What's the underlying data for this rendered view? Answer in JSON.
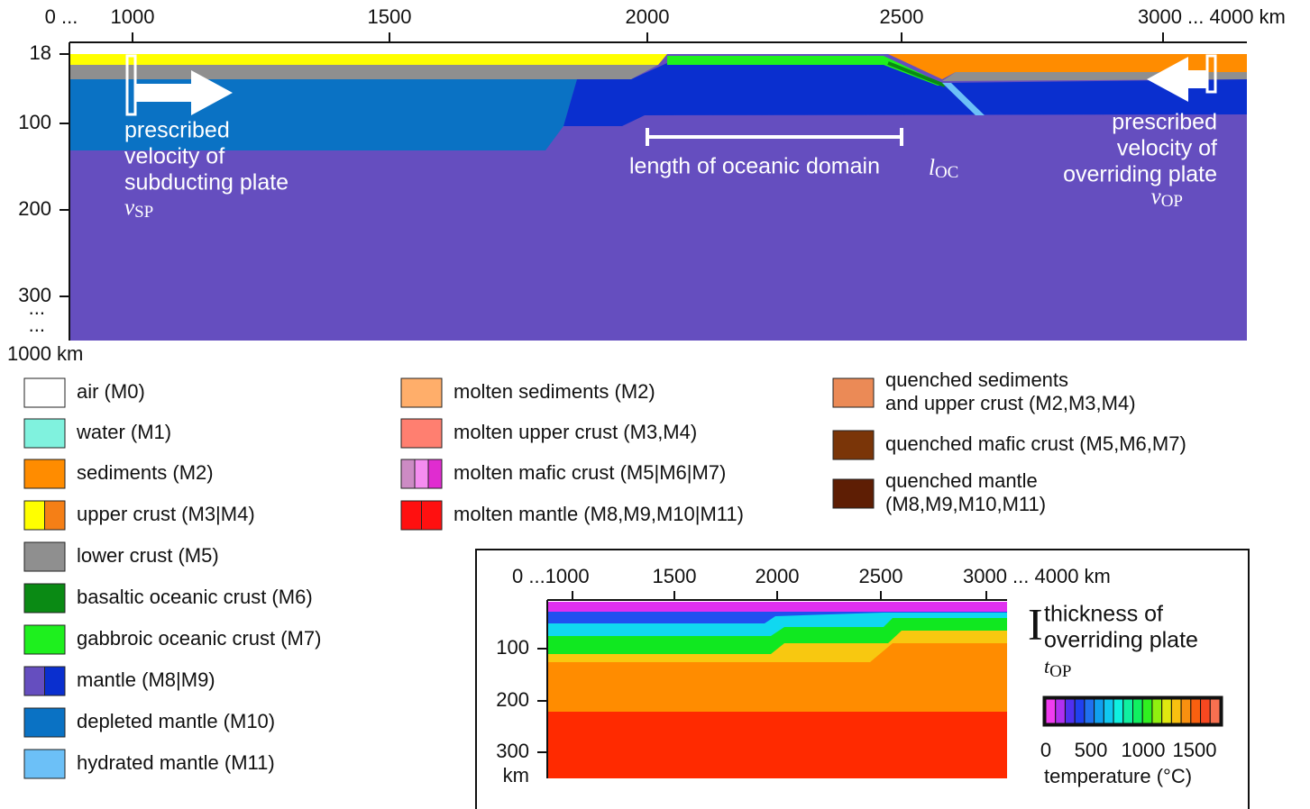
{
  "main": {
    "x_ticks": [
      "0 ...",
      "1000",
      "1500",
      "2000",
      "2500",
      "3000 ... 4000 km"
    ],
    "y_ticks": [
      "18",
      "100",
      "200",
      "300",
      "...",
      "...",
      "1000 km"
    ],
    "subducting": {
      "lines": [
        "prescribed",
        "velocity of",
        "subducting plate"
      ],
      "symbol": "v",
      "sub": "SP"
    },
    "ocean": {
      "text": "length of oceanic domain",
      "symbol": "l",
      "sub": "OC"
    },
    "overriding": {
      "lines": [
        "prescribed",
        "velocity of",
        "overriding plate"
      ],
      "symbol": "v",
      "sub": "OP"
    }
  },
  "legend": [
    {
      "lines": [
        "air (M0)"
      ],
      "colors": [
        "#ffffff"
      ]
    },
    {
      "lines": [
        "water (M1)"
      ],
      "colors": [
        "#80f2de"
      ]
    },
    {
      "lines": [
        "sediments (M2)"
      ],
      "colors": [
        "#ff8c00"
      ]
    },
    {
      "lines": [
        "upper crust (M3|M4)"
      ],
      "colors": [
        "#ffff00",
        "#f57f16"
      ]
    },
    {
      "lines": [
        "lower crust (M5)"
      ],
      "colors": [
        "#8f8f8f"
      ]
    },
    {
      "lines": [
        "basaltic oceanic crust (M6)"
      ],
      "colors": [
        "#0a8a14"
      ]
    },
    {
      "lines": [
        "gabbroic oceanic crust (M7)"
      ],
      "colors": [
        "#1ef01e"
      ]
    },
    {
      "lines": [
        "mantle (M8|M9)"
      ],
      "colors": [
        "#654ebf",
        "#0a2fcf"
      ]
    },
    {
      "lines": [
        "depleted mantle (M10)"
      ],
      "colors": [
        "#0a72c4"
      ]
    },
    {
      "lines": [
        "hydrated mantle (M11)"
      ],
      "colors": [
        "#6cc0f7"
      ]
    },
    {
      "lines": [
        "molten sediments (M2)"
      ],
      "colors": [
        "#ffae6a"
      ]
    },
    {
      "lines": [
        "molten upper crust (M3,M4)"
      ],
      "colors": [
        "#ff7f70"
      ]
    },
    {
      "lines": [
        "molten mafic crust (M5|M6|M7)"
      ],
      "colors": [
        "#cc8bc4",
        "#f58df0",
        "#e02cd0"
      ]
    },
    {
      "lines": [
        "molten mantle (M8,M9,M10|M11)"
      ],
      "colors": [
        "#ff1010",
        "#ff1010"
      ]
    },
    {
      "lines": [
        "quenched sediments",
        "and upper crust (M2,M3,M4)"
      ],
      "colors": [
        "#eb8a56"
      ]
    },
    {
      "lines": [
        "quenched mafic crust (M5,M6,M7)"
      ],
      "colors": [
        "#7a3508"
      ]
    },
    {
      "lines": [
        "quenched mantle",
        "(M8,M9,M10,M11)"
      ],
      "colors": [
        "#5e1e04"
      ]
    }
  ],
  "inset": {
    "x_ticks": [
      "0 ...1000",
      "1500",
      "2000",
      "2500",
      "3000 ... 4000 km"
    ],
    "y_ticks": [
      "100",
      "200",
      "300",
      "km"
    ],
    "thickness": {
      "lines": [
        "thickness of",
        "overriding plate"
      ],
      "symbol": "t",
      "sub": "OP"
    },
    "colorbar": {
      "ticks": [
        "0",
        "500",
        "1000",
        "1500"
      ],
      "label": "temperature (°C)",
      "colors": [
        "#f03cf0",
        "#b030f0",
        "#5030f0",
        "#2040f0",
        "#2070f0",
        "#10a0f0",
        "#10c8f0",
        "#10f0e0",
        "#10f0a0",
        "#10f060",
        "#30f020",
        "#90f010",
        "#e0e810",
        "#f8c010",
        "#f89010",
        "#f86010",
        "#f84820",
        "#f87050"
      ]
    }
  }
}
